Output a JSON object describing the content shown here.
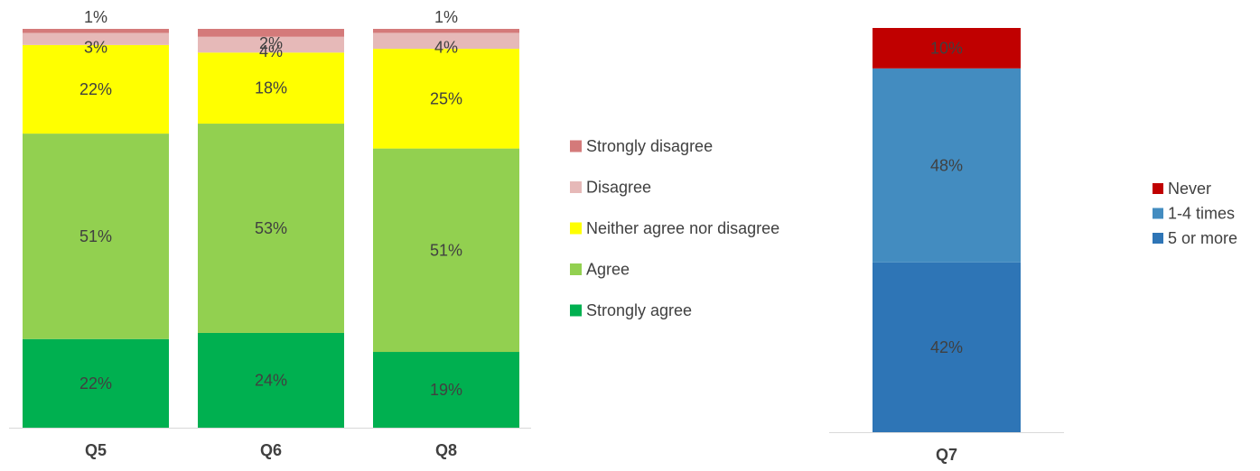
{
  "chart_data": [
    {
      "type": "bar",
      "stacked": true,
      "percent": true,
      "categories": [
        "Q5",
        "Q6",
        "Q8"
      ],
      "series": [
        {
          "name": "Strongly agree",
          "color": "#00b050",
          "values": [
            22,
            24,
            19
          ]
        },
        {
          "name": "Agree",
          "color": "#92d050",
          "values": [
            51,
            53,
            51
          ]
        },
        {
          "name": "Neither agree nor disagree",
          "color": "#ffff00",
          "values": [
            22,
            18,
            25
          ]
        },
        {
          "name": "Disagree",
          "color": "#e6b9b8",
          "values": [
            3,
            4,
            4
          ]
        },
        {
          "name": "Strongly disagree",
          "color": "#d47a7a",
          "values": [
            1,
            2,
            1
          ]
        }
      ],
      "legend_position": "right",
      "legend_order": [
        "Strongly disagree",
        "Disagree",
        "Neither agree nor disagree",
        "Agree",
        "Strongly agree"
      ],
      "ylim": [
        0,
        100
      ],
      "grid": false
    },
    {
      "type": "bar",
      "stacked": true,
      "percent": true,
      "categories": [
        "Q7"
      ],
      "series": [
        {
          "name": "5 or more",
          "color": "#2e75b6",
          "values": [
            42
          ]
        },
        {
          "name": "1-4 times",
          "color": "#438cc0",
          "values": [
            48
          ]
        },
        {
          "name": "Never",
          "color": "#c00000",
          "values": [
            10
          ]
        }
      ],
      "legend_position": "right",
      "legend_order": [
        "Never",
        "1-4 times",
        "5 or more"
      ],
      "ylim": [
        0,
        100
      ],
      "grid": false
    }
  ]
}
